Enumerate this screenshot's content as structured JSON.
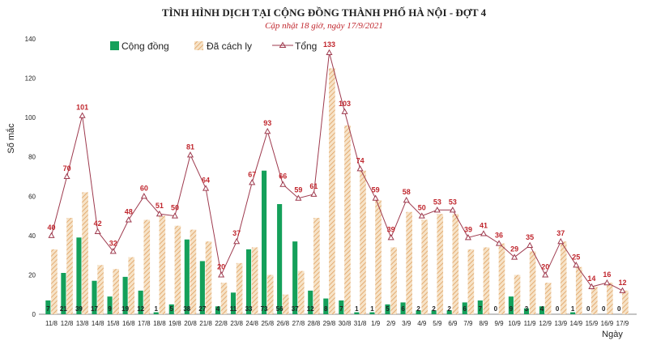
{
  "colors": {
    "community": "#14a05a",
    "quarantine_fill": "#f6e3c8",
    "quarantine_stripe": "#e0a060",
    "total_line": "#9e3a4e",
    "total_label": "#c0262d"
  },
  "chart_data": {
    "type": "bar",
    "title": "TÌNH HÌNH DỊCH TẠI CỘNG ĐỒNG THÀNH PHỐ HÀ NỘI - ĐỢT 4",
    "subtitle": "Cập nhật 18 giờ, ngày 17/9/2021",
    "ylabel": "Số mắc",
    "xlabel": "Ngày",
    "ylim": [
      0,
      140
    ],
    "yticks": [
      0,
      20,
      40,
      60,
      80,
      100,
      120,
      140
    ],
    "grid": false,
    "legend_position": "top-left",
    "categories": [
      "11/8",
      "12/8",
      "13/8",
      "14/8",
      "15/8",
      "16/8",
      "17/8",
      "18/8",
      "19/8",
      "20/8",
      "21/8",
      "22/8",
      "23/8",
      "24/8",
      "25/8",
      "26/8",
      "27/8",
      "28/8",
      "29/8",
      "30/8",
      "31/8",
      "1/9",
      "2/9",
      "3/9",
      "4/9",
      "5/9",
      "6/9",
      "7/9",
      "8/9",
      "9/9",
      "10/9",
      "11/9",
      "12/9",
      "13/9",
      "14/9",
      "15/9",
      "16/9",
      "17/9"
    ],
    "series": [
      {
        "name": "Cộng đồng",
        "type": "bar",
        "values": [
          7,
          21,
          39,
          17,
          9,
          19,
          12,
          1,
          5,
          38,
          27,
          4,
          11,
          33,
          73,
          56,
          37,
          12,
          8,
          7,
          1,
          1,
          5,
          6,
          2,
          2,
          2,
          6,
          7,
          0,
          9,
          3,
          4,
          0,
          1,
          0,
          0,
          0
        ]
      },
      {
        "name": "Đã cách ly",
        "type": "bar",
        "values": [
          33,
          49,
          62,
          25,
          23,
          29,
          48,
          50,
          45,
          43,
          37,
          16,
          26,
          34,
          20,
          10,
          22,
          49,
          125,
          96,
          73,
          58,
          34,
          52,
          48,
          51,
          51,
          33,
          34,
          36,
          20,
          32,
          16,
          37,
          24,
          14,
          16,
          12
        ]
      },
      {
        "name": "Tổng",
        "type": "line",
        "values": [
          40,
          70,
          101,
          42,
          32,
          48,
          60,
          51,
          50,
          81,
          64,
          20,
          37,
          67,
          93,
          66,
          59,
          61,
          133,
          103,
          74,
          59,
          39,
          58,
          50,
          53,
          53,
          39,
          41,
          36,
          29,
          35,
          20,
          37,
          25,
          14,
          16,
          12
        ]
      }
    ]
  }
}
